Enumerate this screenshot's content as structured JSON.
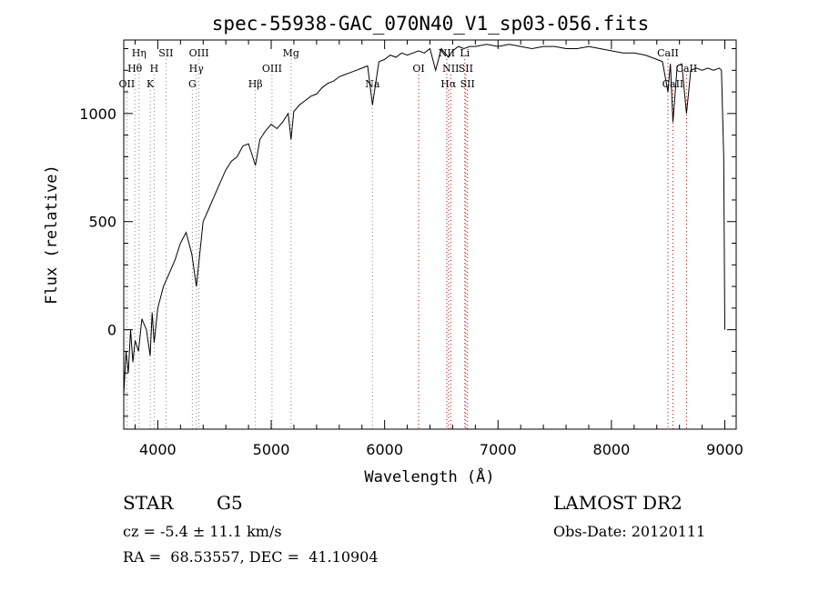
{
  "chart_data": {
    "type": "line",
    "title": "spec-55938-GAC_070N40_V1_sp03-056.fits",
    "xlabel": "Wavelength (Å)",
    "ylabel": "Flux (relative)",
    "xlim": [
      3700,
      9100
    ],
    "ylim": [
      -460,
      1340
    ],
    "xticks": [
      "4000",
      "5000",
      "6000",
      "7000",
      "8000",
      "9000"
    ],
    "xtick_values": [
      4000,
      5000,
      6000,
      7000,
      8000,
      9000
    ],
    "yticks": [
      "0",
      "500",
      "1000"
    ],
    "ytick_values": [
      0,
      500,
      1000
    ],
    "grid": false,
    "series": [
      {
        "x": [
          3700,
          3720,
          3740,
          3760,
          3780,
          3800,
          3830,
          3860,
          3900,
          3933,
          3950,
          3968,
          4000,
          4050,
          4100,
          4150,
          4200,
          4250,
          4300,
          4340,
          4400,
          4450,
          4500,
          4550,
          4600,
          4650,
          4700,
          4750,
          4800,
          4861,
          4900,
          4950,
          5000,
          5050,
          5100,
          5150,
          5175,
          5200,
          5250,
          5300,
          5350,
          5400,
          5450,
          5500,
          5550,
          5600,
          5650,
          5700,
          5750,
          5800,
          5850,
          5893,
          5950,
          6000,
          6050,
          6100,
          6150,
          6200,
          6250,
          6300,
          6350,
          6400,
          6450,
          6500,
          6563,
          6600,
          6650,
          6700,
          6750,
          6800,
          6900,
          7000,
          7100,
          7200,
          7300,
          7400,
          7500,
          7600,
          7700,
          7800,
          7900,
          8000,
          8100,
          8200,
          8300,
          8400,
          8450,
          8498,
          8520,
          8542,
          8580,
          8620,
          8662,
          8700,
          8750,
          8800,
          8850,
          8900,
          8950,
          8970,
          8990,
          9000
        ],
        "y": [
          -300,
          -100,
          -200,
          0,
          -150,
          -50,
          -100,
          50,
          0,
          -120,
          80,
          -60,
          100,
          200,
          260,
          320,
          400,
          450,
          350,
          200,
          500,
          560,
          620,
          680,
          740,
          780,
          800,
          850,
          860,
          760,
          880,
          920,
          950,
          930,
          960,
          1000,
          880,
          1010,
          1040,
          1060,
          1080,
          1090,
          1120,
          1140,
          1150,
          1170,
          1180,
          1190,
          1200,
          1210,
          1220,
          1040,
          1240,
          1250,
          1270,
          1260,
          1280,
          1270,
          1280,
          1290,
          1280,
          1300,
          1200,
          1300,
          1260,
          1290,
          1310,
          1300,
          1310,
          1310,
          1320,
          1310,
          1320,
          1310,
          1300,
          1310,
          1310,
          1300,
          1300,
          1310,
          1300,
          1290,
          1280,
          1280,
          1270,
          1250,
          1240,
          1100,
          1230,
          960,
          1220,
          1230,
          1000,
          1200,
          1210,
          1200,
          1210,
          1200,
          1210,
          1200,
          800,
          0
        ]
      }
    ],
    "line_markers": [
      {
        "label": "OII",
        "wavelength": 3727,
        "row": 3
      },
      {
        "label": "Hθ",
        "wavelength": 3798,
        "row": 2
      },
      {
        "label": "Hη",
        "wavelength": 3835,
        "row": 1
      },
      {
        "label": "K",
        "wavelength": 3934,
        "row": 3
      },
      {
        "label": "H",
        "wavelength": 3968,
        "row": 2
      },
      {
        "label": "SII",
        "wavelength": 4072,
        "row": 1
      },
      {
        "label": "G",
        "wavelength": 4305,
        "row": 3
      },
      {
        "label": "Hγ",
        "wavelength": 4340,
        "row": 2
      },
      {
        "label": "OIII",
        "wavelength": 4363,
        "row": 1
      },
      {
        "label": "Hβ",
        "wavelength": 4861,
        "row": 3
      },
      {
        "label": "OIII",
        "wavelength": 5007,
        "row": 2
      },
      {
        "label": "Mg",
        "wavelength": 5175,
        "row": 1
      },
      {
        "label": "Na",
        "wavelength": 5893,
        "row": 3
      },
      {
        "label": "OI",
        "wavelength": 6300,
        "row": 2
      },
      {
        "label": "NII",
        "wavelength": 6548,
        "row": 1
      },
      {
        "label": "Hα",
        "wavelength": 6563,
        "row": 3
      },
      {
        "label": "NII",
        "wavelength": 6583,
        "row": 2
      },
      {
        "label": "Li",
        "wavelength": 6707,
        "row": 1
      },
      {
        "label": "SII",
        "wavelength": 6716,
        "row": 2
      },
      {
        "label": "SII",
        "wavelength": 6731,
        "row": 3
      },
      {
        "label": "CaII",
        "wavelength": 8498,
        "row": 1
      },
      {
        "label": "CaII",
        "wavelength": 8542,
        "row": 3
      },
      {
        "label": "CaII",
        "wavelength": 8662,
        "row": 2
      }
    ],
    "colors": {
      "spectrum": "#000000",
      "marker_red": "#cc0000",
      "marker_gray": "#888888"
    }
  },
  "info": {
    "class_label": "STAR",
    "subclass": "G5",
    "survey": "LAMOST DR2",
    "redshift_text": "cz = -5.4 ± 11.1 km/s",
    "obs_date": "Obs-Date: 20120111",
    "coords": "RA =  68.53557, DEC =  41.10904"
  }
}
